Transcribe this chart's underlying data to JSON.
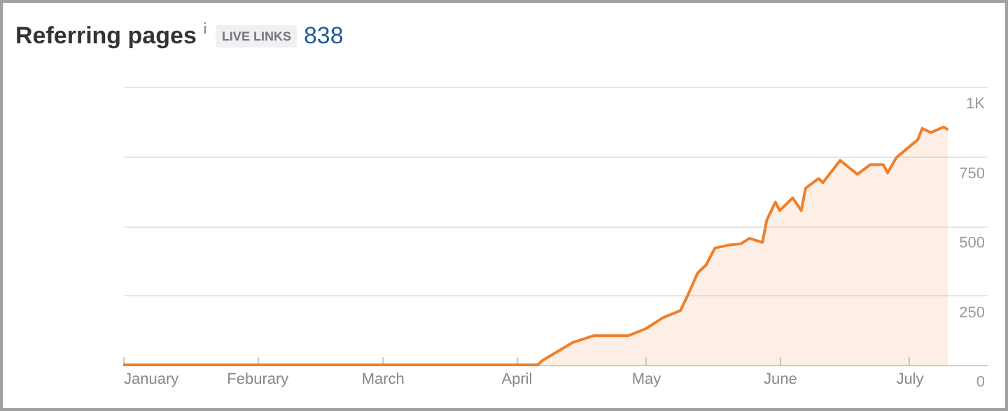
{
  "chart_data": {
    "type": "area",
    "title": "Referring pages",
    "annotations": [
      "LIVE LINKS",
      "838"
    ],
    "x": [
      "--01-01",
      "--04-06",
      "--04-07",
      "--04-14",
      "--04-19",
      "--04-27",
      "--05-01",
      "--05-05",
      "--05-09",
      "--05-11",
      "--05-13",
      "--05-15",
      "--05-17",
      "--05-20",
      "--05-23",
      "--05-25",
      "--05-28",
      "--05-29",
      "--05-31",
      "--06-01",
      "--06-04",
      "--06-06",
      "--06-07",
      "--06-10",
      "--06-11",
      "--06-15",
      "--06-19",
      "--06-22",
      "--06-25",
      "--06-26",
      "--06-28",
      "--07-03",
      "--07-04",
      "--07-06",
      "--07-09",
      "--07-10"
    ],
    "series": [
      {
        "color": "#f07f2a",
        "values": [
          0,
          0,
          15,
          80,
          105,
          105,
          130,
          170,
          195,
          260,
          330,
          360,
          420,
          430,
          435,
          455,
          440,
          520,
          585,
          555,
          600,
          555,
          635,
          670,
          655,
          735,
          685,
          720,
          720,
          690,
          745,
          810,
          850,
          835,
          855,
          845
        ]
      }
    ],
    "xlim": [
      "--01-01",
      "--07-19"
    ],
    "xticks": [
      {
        "value": "--01-01",
        "label": "January"
      },
      {
        "value": "--02-01",
        "label": "Feburary"
      },
      {
        "value": "--03-01",
        "label": "March"
      },
      {
        "value": "--04-01",
        "label": "April"
      },
      {
        "value": "--05-01",
        "label": "May"
      },
      {
        "value": "--06-01",
        "label": "June"
      },
      {
        "value": "--07-01",
        "label": "July"
      }
    ],
    "ylim": [
      0,
      1000
    ],
    "yticks": [
      0,
      250,
      500,
      750,
      {
        "value": 1000,
        "label": "1K"
      }
    ],
    "grid": "y"
  }
}
